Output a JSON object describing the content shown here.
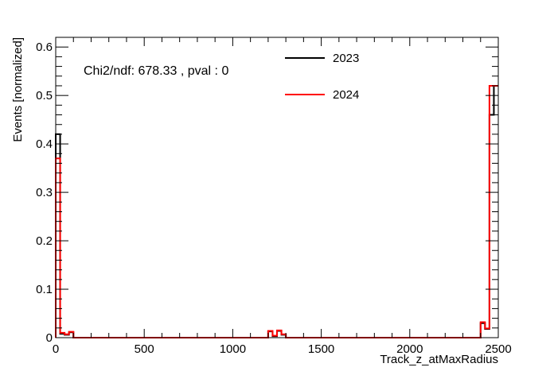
{
  "chart_data": {
    "type": "histogram",
    "xlabel": "Track_z_atMaxRadius",
    "ylabel": "Events [normalized]",
    "xlim": [
      0,
      2500
    ],
    "ylim": [
      0,
      0.62
    ],
    "bin_width": 25,
    "x_ticks": [
      "0",
      "500",
      "1000",
      "1500",
      "2000",
      "2500"
    ],
    "y_ticks": [
      "0",
      "0.1",
      "0.2",
      "0.3",
      "0.4",
      "0.5",
      "0.6"
    ],
    "x_tick_values": [
      0,
      500,
      1000,
      1500,
      2000,
      2500
    ],
    "y_tick_values": [
      0,
      0.1,
      0.2,
      0.3,
      0.4,
      0.5,
      0.6
    ],
    "annotation": "Chi2/ndf: 678.33 , pval : 0",
    "legend_position": "top-right",
    "series": [
      {
        "name": "2023",
        "color": "#000000",
        "bins": [
          {
            "x": 0,
            "y": 0.42
          },
          {
            "x": 25,
            "y": 0.008
          },
          {
            "x": 50,
            "y": 0.006
          },
          {
            "x": 75,
            "y": 0.011
          },
          {
            "x": 100,
            "y": 0.0
          },
          {
            "x": 1175,
            "y": 0.0
          },
          {
            "x": 1200,
            "y": 0.013
          },
          {
            "x": 1225,
            "y": 0.003
          },
          {
            "x": 1250,
            "y": 0.014
          },
          {
            "x": 1275,
            "y": 0.006
          },
          {
            "x": 1300,
            "y": 0.0
          },
          {
            "x": 2375,
            "y": 0.0
          },
          {
            "x": 2400,
            "y": 0.03
          },
          {
            "x": 2425,
            "y": 0.018
          },
          {
            "x": 2450,
            "y": 0.46
          },
          {
            "x": 2475,
            "y": 0.52
          }
        ]
      },
      {
        "name": "2024",
        "color": "#ff0000",
        "bins": [
          {
            "x": 0,
            "y": 0.37
          },
          {
            "x": 25,
            "y": 0.01
          },
          {
            "x": 50,
            "y": 0.007
          },
          {
            "x": 75,
            "y": 0.012
          },
          {
            "x": 100,
            "y": 0.0
          },
          {
            "x": 1175,
            "y": 0.0
          },
          {
            "x": 1200,
            "y": 0.014
          },
          {
            "x": 1225,
            "y": 0.004
          },
          {
            "x": 1250,
            "y": 0.015
          },
          {
            "x": 1275,
            "y": 0.007
          },
          {
            "x": 1300,
            "y": 0.0
          },
          {
            "x": 2375,
            "y": 0.0
          },
          {
            "x": 2400,
            "y": 0.032
          },
          {
            "x": 2425,
            "y": 0.019
          },
          {
            "x": 2450,
            "y": 0.52
          },
          {
            "x": 2475,
            "y": 0.52
          }
        ]
      }
    ]
  }
}
